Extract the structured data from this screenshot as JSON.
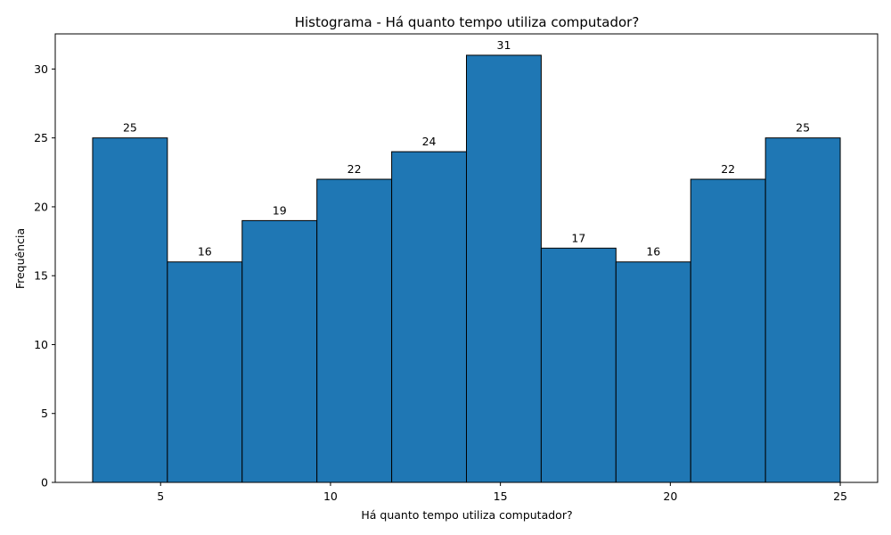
{
  "chart_data": {
    "type": "bar",
    "title": "Histograma - Há quanto tempo utiliza computador?",
    "xlabel": "Há quanto tempo utiliza computador?",
    "ylabel": "Frequência",
    "bin_edges": [
      3.0,
      5.2,
      7.4,
      9.6,
      11.8,
      14.0,
      16.2,
      18.4,
      20.6,
      22.8,
      25.0
    ],
    "values": [
      25,
      16,
      19,
      22,
      24,
      31,
      17,
      16,
      22,
      25
    ],
    "data_labels": [
      "25",
      "16",
      "19",
      "22",
      "24",
      "31",
      "17",
      "16",
      "22",
      "25"
    ],
    "xlim": [
      1.9,
      26.1
    ],
    "ylim": [
      0,
      32.55
    ],
    "xticks": [
      5,
      10,
      15,
      20,
      25
    ],
    "yticks": [
      0,
      5,
      10,
      15,
      20,
      25,
      30
    ],
    "bar_color": "#1f77b4",
    "edge_color": "#000000",
    "grid": false,
    "legend": "none"
  }
}
